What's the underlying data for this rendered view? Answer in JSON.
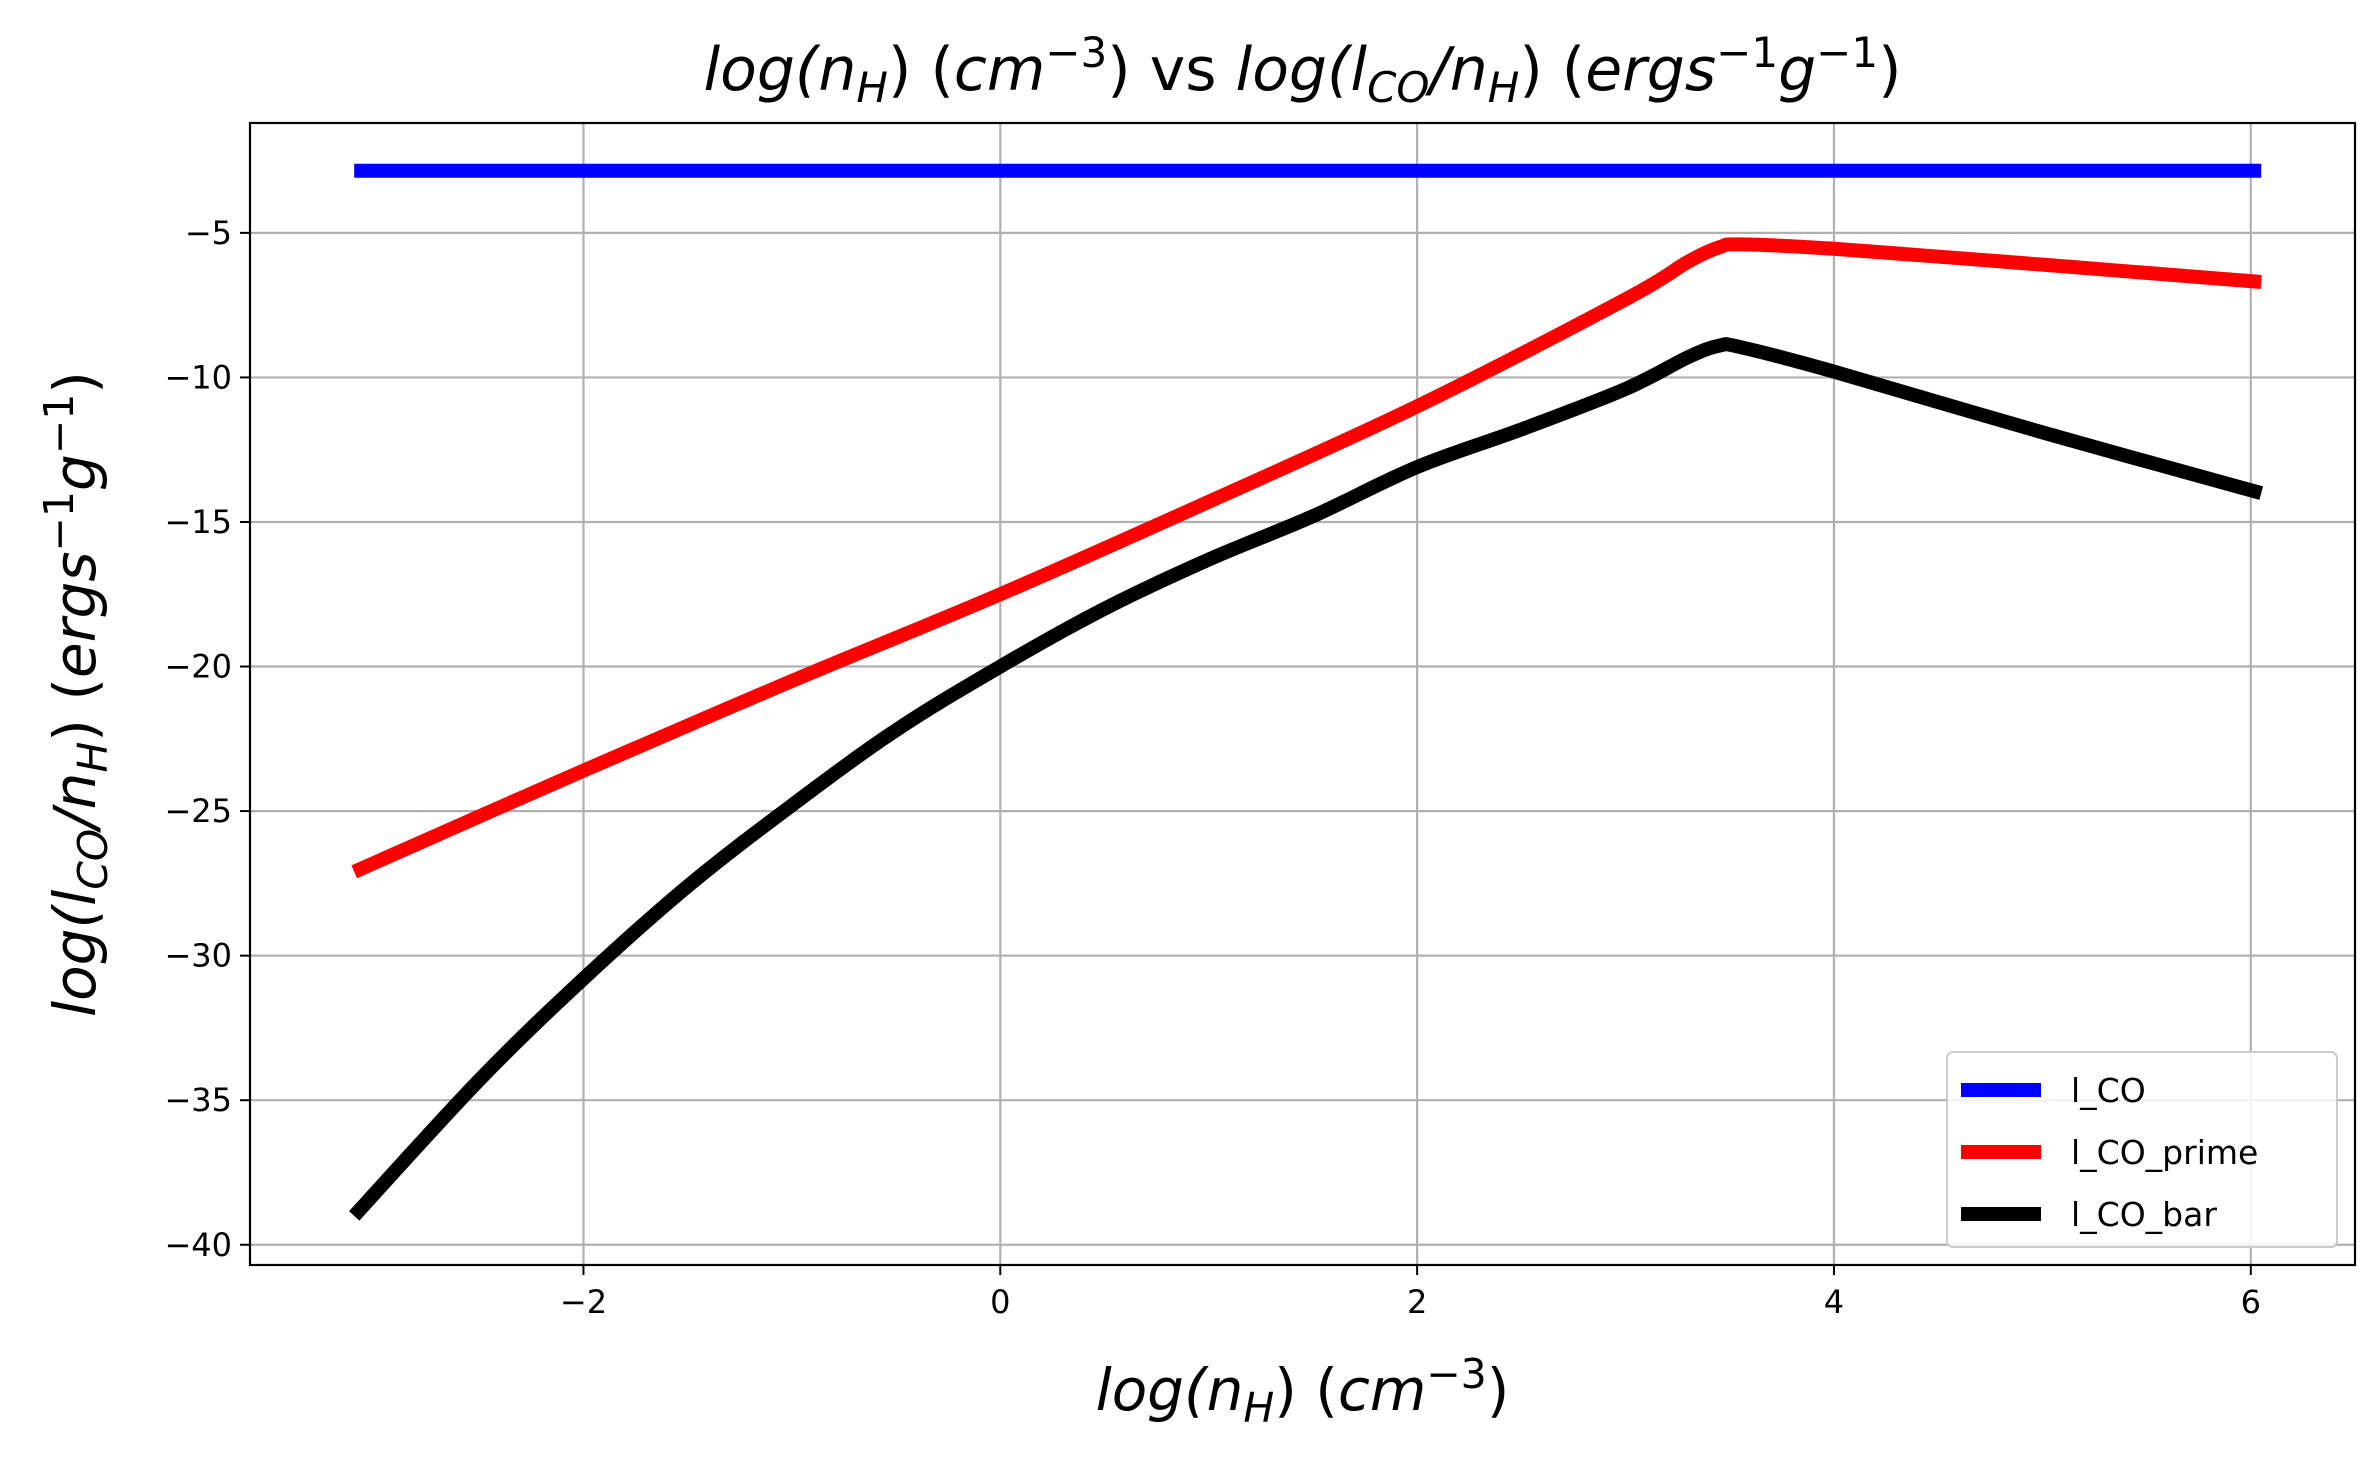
{
  "chart_data": {
    "type": "line",
    "title": {
      "segments": [
        {
          "t": "log(n",
          "italic": true
        },
        {
          "t": "H",
          "italic": true,
          "sub": true
        },
        {
          "t": ") (",
          "italic": false
        },
        {
          "t": "cm",
          "italic": true
        },
        {
          "t": "−3",
          "italic": false,
          "sup": true
        },
        {
          "t": ") vs ",
          "italic": false
        },
        {
          "t": "log(l",
          "italic": true
        },
        {
          "t": "CO",
          "italic": true,
          "sub": true
        },
        {
          "t": "/n",
          "italic": true
        },
        {
          "t": "H",
          "italic": true,
          "sub": true
        },
        {
          "t": ") (",
          "italic": false
        },
        {
          "t": "ergs",
          "italic": true
        },
        {
          "t": "−1",
          "italic": false,
          "sup": true
        },
        {
          "t": "g",
          "italic": true
        },
        {
          "t": "−1",
          "italic": false,
          "sup": true
        },
        {
          "t": ")",
          "italic": false
        }
      ]
    },
    "xlabel": {
      "segments": [
        {
          "t": "log(n",
          "italic": true
        },
        {
          "t": "H",
          "italic": true,
          "sub": true
        },
        {
          "t": ") (",
          "italic": false
        },
        {
          "t": "cm",
          "italic": true
        },
        {
          "t": "−3",
          "italic": false,
          "sup": true
        },
        {
          "t": ")",
          "italic": false
        }
      ]
    },
    "ylabel": {
      "segments": [
        {
          "t": "log(l",
          "italic": true
        },
        {
          "t": "CO",
          "italic": true,
          "sub": true
        },
        {
          "t": "/n",
          "italic": true
        },
        {
          "t": "H",
          "italic": true,
          "sub": true
        },
        {
          "t": ") (",
          "italic": false
        },
        {
          "t": "ergs",
          "italic": true
        },
        {
          "t": "−1",
          "italic": false,
          "sup": true
        },
        {
          "t": "g",
          "italic": true
        },
        {
          "t": "−1",
          "italic": false,
          "sup": true
        },
        {
          "t": ")",
          "italic": false
        }
      ]
    },
    "xlim": [
      -3.6,
      6.5
    ],
    "ylim": [
      -40.7,
      -1.2
    ],
    "xticks": [
      -2,
      0,
      2,
      4,
      6
    ],
    "xtick_labels": [
      "−2",
      "0",
      "2",
      "4",
      "6"
    ],
    "yticks": [
      -40,
      -35,
      -30,
      -25,
      -20,
      -15,
      -10,
      -5
    ],
    "ytick_labels": [
      "−40",
      "−35",
      "−30",
      "−25",
      "−20",
      "−15",
      "−10",
      "−5"
    ],
    "grid": true,
    "legend_position": "lower-right",
    "series": [
      {
        "name": "l_CO",
        "color": "#0000ff",
        "points": [
          [
            -3.1,
            -2.85
          ],
          [
            6.05,
            -2.85
          ]
        ]
      },
      {
        "name": "l_CO_prime",
        "color": "#ff0000",
        "points": [
          [
            -3.1,
            -27.1
          ],
          [
            -2.0,
            -23.6
          ],
          [
            -1.0,
            -20.5
          ],
          [
            0.0,
            -17.5
          ],
          [
            1.0,
            -14.3
          ],
          [
            2.0,
            -11.0
          ],
          [
            3.0,
            -7.3
          ],
          [
            3.3,
            -6.0
          ],
          [
            3.45,
            -5.5
          ],
          [
            3.55,
            -5.4
          ],
          [
            4.0,
            -5.55
          ],
          [
            5.0,
            -6.1
          ],
          [
            6.05,
            -6.7
          ]
        ]
      },
      {
        "name": "l_CO_bar",
        "color": "#000000",
        "points": [
          [
            -3.1,
            -39.0
          ],
          [
            -2.5,
            -34.3
          ],
          [
            -2.0,
            -30.8
          ],
          [
            -1.5,
            -27.6
          ],
          [
            -1.0,
            -24.8
          ],
          [
            -0.5,
            -22.2
          ],
          [
            0.0,
            -20.0
          ],
          [
            0.5,
            -18.0
          ],
          [
            1.0,
            -16.3
          ],
          [
            1.5,
            -14.8
          ],
          [
            2.0,
            -13.1
          ],
          [
            2.5,
            -11.8
          ],
          [
            3.0,
            -10.4
          ],
          [
            3.3,
            -9.3
          ],
          [
            3.45,
            -8.9
          ],
          [
            3.55,
            -8.95
          ],
          [
            4.0,
            -9.8
          ],
          [
            5.0,
            -11.9
          ],
          [
            6.05,
            -14.0
          ]
        ]
      }
    ]
  }
}
